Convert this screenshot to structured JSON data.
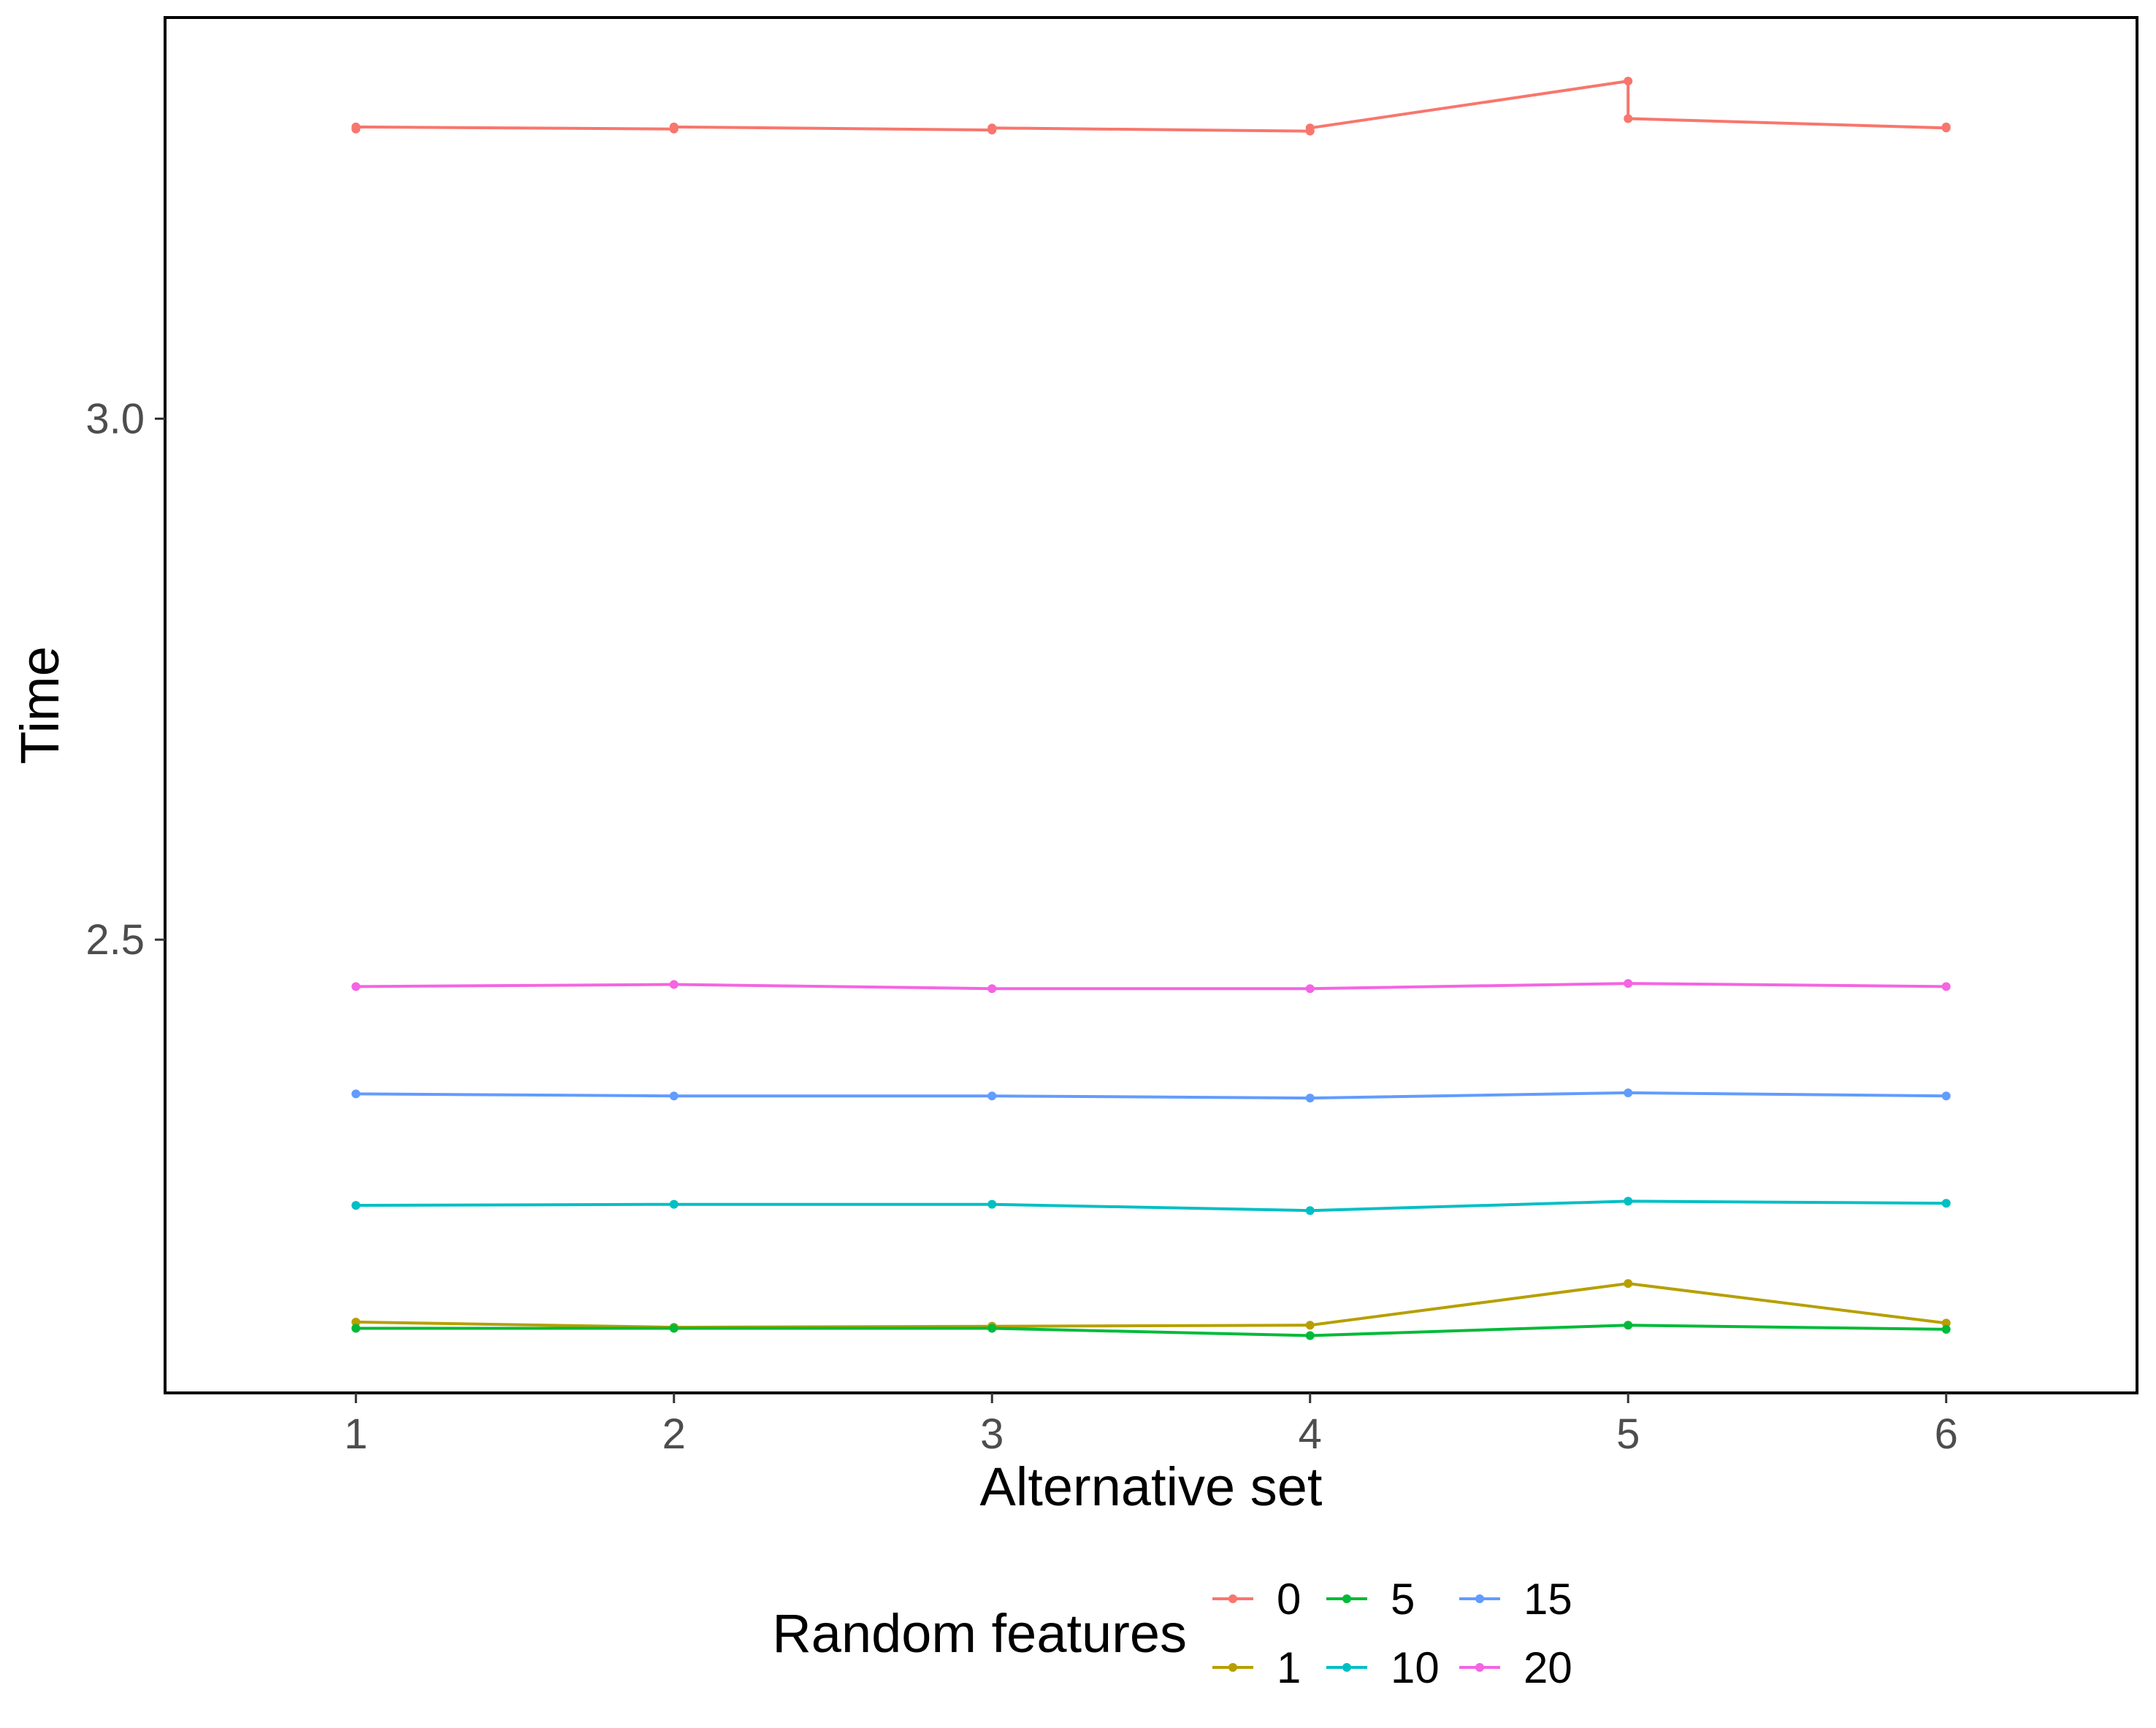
{
  "chart_data": {
    "type": "line",
    "xlabel": "Alternative set",
    "ylabel": "Time",
    "x": [
      1,
      2,
      3,
      4,
      5,
      6
    ],
    "xlim": [
      0.4,
      6.6
    ],
    "ylim": [
      2.065,
      3.385
    ],
    "yticks": [
      2.5,
      3.0
    ],
    "ytick_labels": [
      "2.5",
      "3.0"
    ],
    "xtick_labels": [
      "1",
      "2",
      "3",
      "4",
      "5",
      "6"
    ],
    "grid": false,
    "legend": {
      "title": "Random features",
      "placement": "bottom",
      "layout": "3 columns x 2 rows, column-major",
      "entries": [
        "0",
        "1",
        "5",
        "10",
        "15",
        "20"
      ]
    },
    "series": [
      {
        "name": "0",
        "color": "#F8766D",
        "points": [
          [
            1,
            3.278
          ],
          [
            1,
            3.28
          ],
          [
            2,
            3.278
          ],
          [
            2,
            3.28
          ],
          [
            3,
            3.277
          ],
          [
            3,
            3.279
          ],
          [
            4,
            3.276
          ],
          [
            4,
            3.279
          ],
          [
            5,
            3.324
          ],
          [
            5,
            3.288
          ],
          [
            6,
            3.279
          ],
          [
            6,
            3.28
          ]
        ]
      },
      {
        "name": "1",
        "color": "#B79F00",
        "points": [
          [
            1,
            2.133
          ],
          [
            2,
            2.128
          ],
          [
            3,
            2.129
          ],
          [
            4,
            2.13
          ],
          [
            5,
            2.17
          ],
          [
            6,
            2.132
          ]
        ]
      },
      {
        "name": "5",
        "color": "#00BA38",
        "points": [
          [
            1,
            2.127
          ],
          [
            2,
            2.127
          ],
          [
            3,
            2.127
          ],
          [
            4,
            2.12
          ],
          [
            5,
            2.13
          ],
          [
            6,
            2.126
          ]
        ]
      },
      {
        "name": "10",
        "color": "#00BFC4",
        "points": [
          [
            1,
            2.245
          ],
          [
            2,
            2.246
          ],
          [
            3,
            2.246
          ],
          [
            4,
            2.24
          ],
          [
            5,
            2.249
          ],
          [
            6,
            2.247
          ]
        ]
      },
      {
        "name": "15",
        "color": "#619CFF",
        "points": [
          [
            1,
            2.352
          ],
          [
            2,
            2.35
          ],
          [
            3,
            2.35
          ],
          [
            4,
            2.348
          ],
          [
            5,
            2.353
          ],
          [
            6,
            2.35
          ]
        ]
      },
      {
        "name": "20",
        "color": "#F564E3",
        "points": [
          [
            1,
            2.455
          ],
          [
            2,
            2.457
          ],
          [
            3,
            2.453
          ],
          [
            4,
            2.453
          ],
          [
            5,
            2.458
          ],
          [
            6,
            2.455
          ]
        ]
      }
    ]
  }
}
